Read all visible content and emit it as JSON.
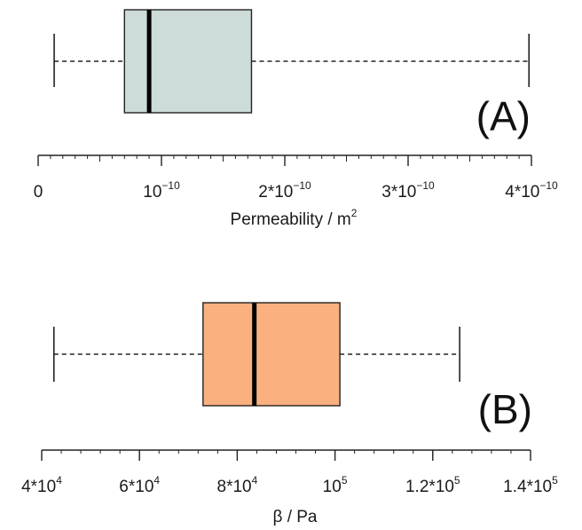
{
  "chart_data": [
    {
      "type": "box",
      "panel_label": "(A)",
      "xlabel": "Permeability / m",
      "xlabel_sup": "2",
      "xlim": [
        0,
        4e-10
      ],
      "box": {
        "whisker_low": 1.3e-11,
        "q1": 7e-11,
        "median": 9e-11,
        "q3": 1.73e-10,
        "whisker_high": 3.98e-10
      },
      "fill_color": "#cddbd9",
      "major_ticks": [
        {
          "value": 0,
          "base": "0",
          "sup": ""
        },
        {
          "value": 1e-10,
          "base": "10",
          "sup": "−10"
        },
        {
          "value": 2e-10,
          "base": "2*10",
          "sup": "−10"
        },
        {
          "value": 3e-10,
          "base": "3*10",
          "sup": "−10"
        },
        {
          "value": 4e-10,
          "base": "4*10",
          "sup": "−10"
        }
      ],
      "minor_step": 1e-11
    },
    {
      "type": "box",
      "panel_label": "(B)",
      "xlabel": "β / Pa",
      "xlabel_sup": "",
      "xlim": [
        40000,
        140000
      ],
      "box": {
        "whisker_low": 42500,
        "q1": 73000,
        "median": 83500,
        "q3": 101000,
        "whisker_high": 125500
      },
      "fill_color": "#fbb07f",
      "major_ticks": [
        {
          "value": 40000,
          "base": "4*10",
          "sup": "4"
        },
        {
          "value": 60000,
          "base": "6*10",
          "sup": "4"
        },
        {
          "value": 80000,
          "base": "8*10",
          "sup": "4"
        },
        {
          "value": 100000,
          "base": "10",
          "sup": "5"
        },
        {
          "value": 120000,
          "base": "1.2*10",
          "sup": "5"
        },
        {
          "value": 140000,
          "base": "1.4*10",
          "sup": "5"
        }
      ],
      "minor_step": 4000
    }
  ]
}
